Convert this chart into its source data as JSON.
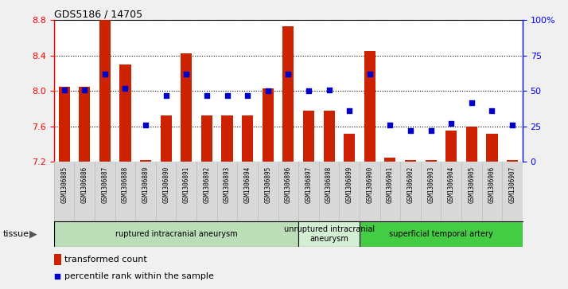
{
  "title": "GDS5186 / 14705",
  "samples": [
    "GSM1306885",
    "GSM1306886",
    "GSM1306887",
    "GSM1306888",
    "GSM1306889",
    "GSM1306890",
    "GSM1306891",
    "GSM1306892",
    "GSM1306893",
    "GSM1306894",
    "GSM1306895",
    "GSM1306896",
    "GSM1306897",
    "GSM1306898",
    "GSM1306899",
    "GSM1306900",
    "GSM1306901",
    "GSM1306902",
    "GSM1306903",
    "GSM1306904",
    "GSM1306905",
    "GSM1306906",
    "GSM1306907"
  ],
  "transformed_count": [
    8.05,
    8.05,
    8.8,
    8.3,
    7.22,
    7.72,
    8.43,
    7.72,
    7.72,
    7.72,
    8.03,
    8.73,
    7.78,
    7.78,
    7.52,
    8.45,
    7.25,
    7.22,
    7.22,
    7.55,
    7.6,
    7.52,
    7.22
  ],
  "percentile_rank": [
    51,
    51,
    62,
    52,
    26,
    47,
    62,
    47,
    47,
    47,
    50,
    62,
    50,
    51,
    36,
    62,
    26,
    22,
    22,
    27,
    42,
    36,
    26
  ],
  "ymin": 7.2,
  "ymax": 8.8,
  "yticks_left": [
    7.2,
    7.6,
    8.0,
    8.4,
    8.8
  ],
  "yticks_right": [
    0,
    25,
    50,
    75,
    100
  ],
  "bar_color": "#cc2200",
  "dot_color": "#0000cc",
  "fig_bg": "#f0f0f0",
  "plot_bg": "#ffffff",
  "xtick_bg": "#d8d8d8",
  "groups": [
    {
      "label": "ruptured intracranial aneurysm",
      "start": 0,
      "end": 12,
      "color": "#bbddb8"
    },
    {
      "label": "unruptured intracranial\naneurysm",
      "start": 12,
      "end": 15,
      "color": "#d4eed4"
    },
    {
      "label": "superficial temporal artery",
      "start": 15,
      "end": 23,
      "color": "#44cc44"
    }
  ],
  "legend_bar_label": "transformed count",
  "legend_dot_label": "percentile rank within the sample"
}
